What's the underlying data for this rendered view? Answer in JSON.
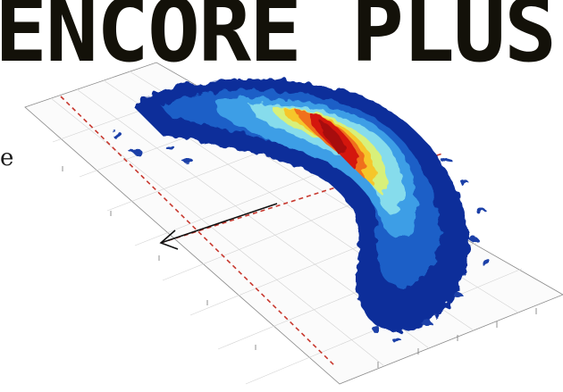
{
  "header": {
    "title": "ENCORE PLUS"
  },
  "left_fragment": "e",
  "plot": {
    "colormap": [
      "#0c2f9a",
      "#1a5fc7",
      "#3d9ee6",
      "#86dcec",
      "#d8f07a",
      "#f6c62c",
      "#f0701c",
      "#d41410",
      "#a70c0a"
    ]
  }
}
